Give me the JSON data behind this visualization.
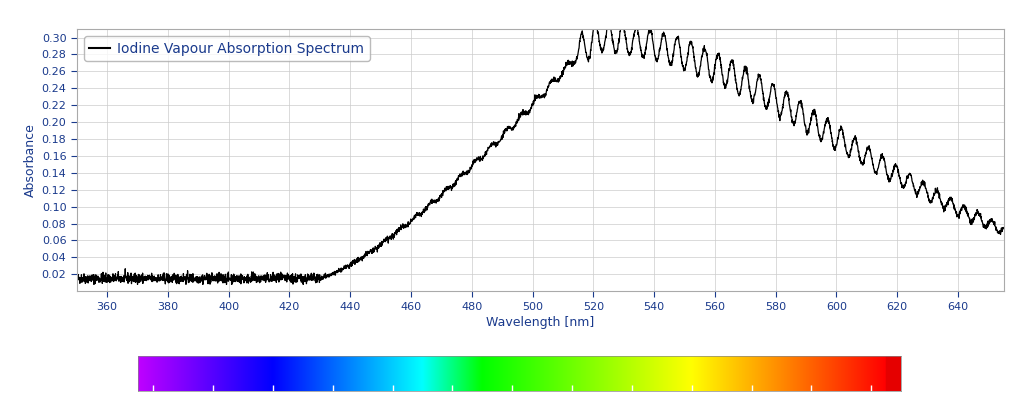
{
  "title": "Iodine Vapour Absorption Spectrum",
  "xlabel": "Wavelength [nm]",
  "ylabel": "Absorbance",
  "xlim": [
    350,
    655
  ],
  "ylim": [
    0.0,
    0.31
  ],
  "yticks": [
    0.02,
    0.04,
    0.06,
    0.08,
    0.1,
    0.12,
    0.14,
    0.16,
    0.18,
    0.2,
    0.22,
    0.24,
    0.26,
    0.28,
    0.3
  ],
  "xticks": [
    360,
    380,
    400,
    420,
    440,
    460,
    480,
    500,
    520,
    540,
    560,
    580,
    600,
    620,
    640
  ],
  "line_color": "#000000",
  "background_color": "#ffffff",
  "grid_color": "#cccccc",
  "axis_label_color": "#1a3a8c",
  "tick_label_color": "#1a3a8c",
  "legend_text_color": "#1a3a8c",
  "colorbar_ticks": [
    400,
    420,
    440,
    460,
    480,
    500,
    520,
    540,
    560,
    580,
    600,
    620,
    640
  ],
  "colorbar_xlim": [
    395,
    650
  ],
  "figsize": [
    10.24,
    4.16
  ],
  "dpi": 100
}
